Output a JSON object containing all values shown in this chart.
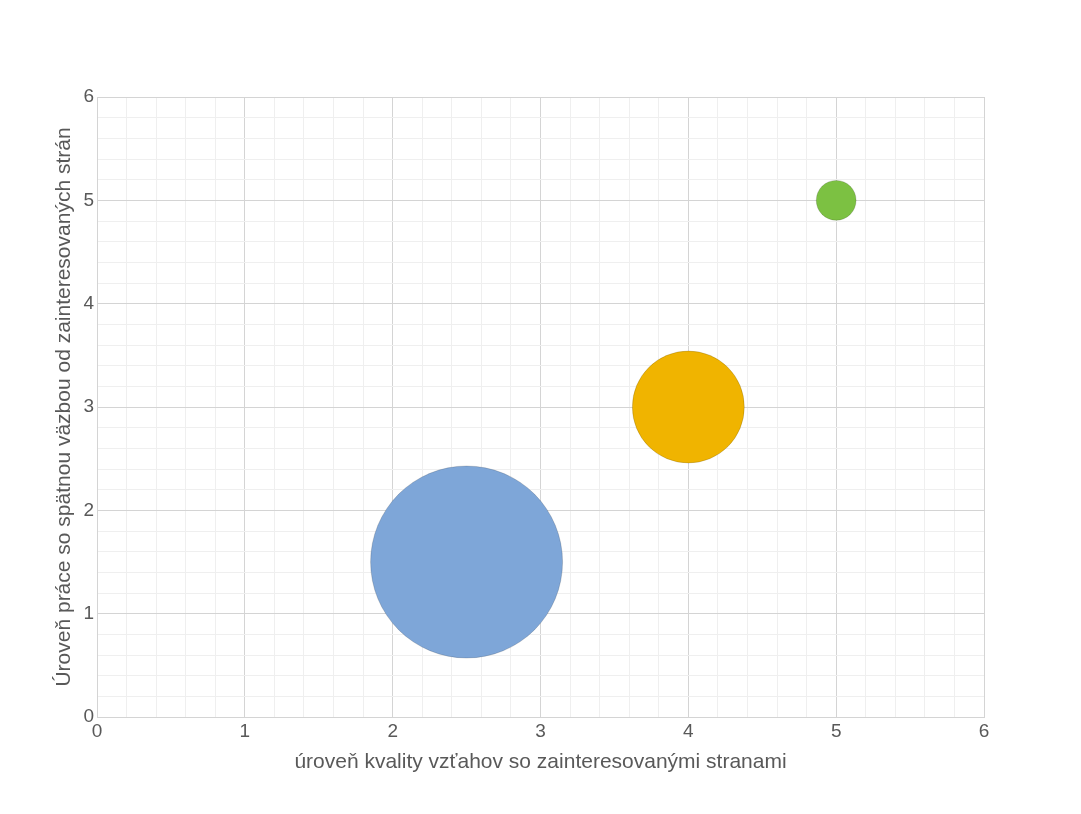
{
  "chart_data": {
    "type": "bubble",
    "xlabel": "úroveň kvality vzťahov so zainteresovanými stranami",
    "ylabel": "Úroveň práce so spätnou väzbou od zainteresovaných strán",
    "x": [
      2.5,
      4,
      5
    ],
    "values": [
      1.5,
      3,
      5
    ],
    "sizes": [
      1,
      0.34,
      0.043
    ],
    "colors": [
      "#7ea6d8",
      "#f0b400",
      "#7cc142"
    ],
    "xlim": [
      0,
      6
    ],
    "xticks": [
      0,
      {
        "value": 0.2,
        "label": null
      },
      {
        "value": 0.4,
        "label": null
      },
      {
        "value": 0.6,
        "label": null
      },
      {
        "value": 0.8,
        "label": null
      },
      1,
      {
        "value": 1.2,
        "label": null
      },
      {
        "value": 1.4,
        "label": null
      },
      {
        "value": 1.6,
        "label": null
      },
      {
        "value": 1.8,
        "label": null
      },
      2,
      {
        "value": 2.2,
        "label": null
      },
      {
        "value": 2.4,
        "label": null
      },
      {
        "value": 2.6,
        "label": null
      },
      {
        "value": 2.8,
        "label": null
      },
      3,
      {
        "value": 3.2,
        "label": null
      },
      {
        "value": 3.4,
        "label": null
      },
      {
        "value": 3.6,
        "label": null
      },
      {
        "value": 3.8,
        "label": null
      },
      4,
      {
        "value": 4.2,
        "label": null
      },
      {
        "value": 4.4,
        "label": null
      },
      {
        "value": 4.6,
        "label": null
      },
      {
        "value": 4.8,
        "label": null
      },
      5,
      {
        "value": 5.2,
        "label": null
      },
      {
        "value": 5.4,
        "label": null
      },
      {
        "value": 5.6,
        "label": null
      },
      {
        "value": 5.8,
        "label": null
      },
      6
    ],
    "ylim": [
      0,
      6
    ],
    "yticks": [
      0,
      {
        "value": 0.2,
        "label": null
      },
      {
        "value": 0.4,
        "label": null
      },
      {
        "value": 0.6,
        "label": null
      },
      {
        "value": 0.8,
        "label": null
      },
      1,
      {
        "value": 1.2,
        "label": null
      },
      {
        "value": 1.4,
        "label": null
      },
      {
        "value": 1.6,
        "label": null
      },
      {
        "value": 1.8,
        "label": null
      },
      2,
      {
        "value": 2.2,
        "label": null
      },
      {
        "value": 2.4,
        "label": null
      },
      {
        "value": 2.6,
        "label": null
      },
      {
        "value": 2.8,
        "label": null
      },
      3,
      {
        "value": 3.2,
        "label": null
      },
      {
        "value": 3.4,
        "label": null
      },
      {
        "value": 3.6,
        "label": null
      },
      {
        "value": 3.8,
        "label": null
      },
      4,
      {
        "value": 4.2,
        "label": null
      },
      {
        "value": 4.4,
        "label": null
      },
      {
        "value": 4.6,
        "label": null
      },
      {
        "value": 4.8,
        "label": null
      },
      5,
      {
        "value": 5.2,
        "label": null
      },
      {
        "value": 5.4,
        "label": null
      },
      {
        "value": 5.6,
        "label": null
      },
      {
        "value": 5.8,
        "label": null
      },
      6
    ],
    "grid": true,
    "legend": false
  }
}
